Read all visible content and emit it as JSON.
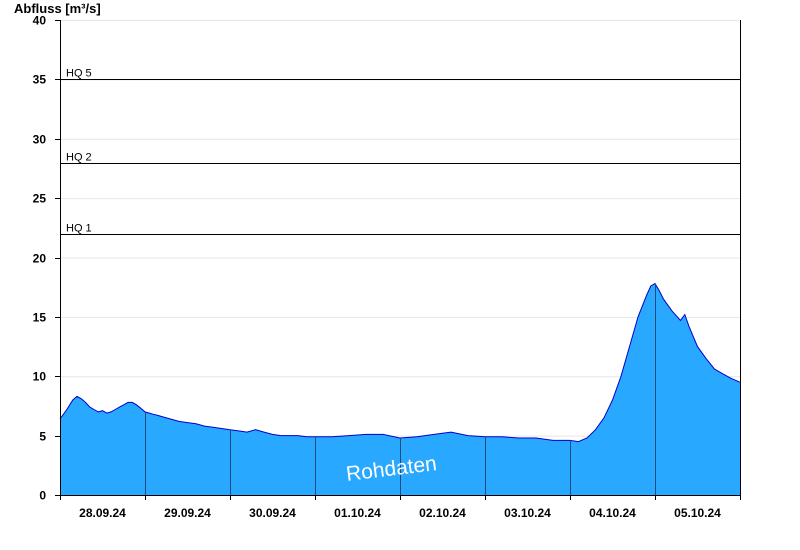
{
  "chart_data": {
    "type": "area",
    "ylabel": "Abfluss [m³/s]",
    "ylim": [
      0,
      40
    ],
    "yticks": [
      0,
      5,
      10,
      15,
      20,
      25,
      30,
      35,
      40
    ],
    "xlim": [
      0,
      8
    ],
    "grid": true,
    "x_tick_labels": [
      "28.09.24",
      "29.09.24",
      "30.09.24",
      "01.10.24",
      "02.10.24",
      "03.10.24",
      "04.10.24",
      "05.10.24"
    ],
    "day_boundaries": [
      1,
      2,
      3,
      4,
      5,
      6,
      7
    ],
    "reference_lines": [
      {
        "label": "HQ 5",
        "value": 35
      },
      {
        "label": "HQ 2",
        "value": 28
      },
      {
        "label": "HQ 1",
        "value": 22
      }
    ],
    "watermark": "Rohdaten",
    "colors": {
      "fill": "#29a8ff",
      "line": "#0000cc",
      "axis": "#000000",
      "grid": "#e6e6e6"
    },
    "series": [
      {
        "x_unit": "days since 28.09.24 00:00",
        "x": [
          0,
          0.08,
          0.15,
          0.2,
          0.25,
          0.3,
          0.35,
          0.4,
          0.45,
          0.5,
          0.55,
          0.6,
          0.65,
          0.7,
          0.75,
          0.8,
          0.85,
          0.9,
          0.95,
          1.0,
          1.05,
          1.1,
          1.15,
          1.2,
          1.3,
          1.4,
          1.5,
          1.6,
          1.7,
          1.8,
          1.9,
          2.0,
          2.1,
          2.2,
          2.3,
          2.4,
          2.5,
          2.6,
          2.7,
          2.8,
          2.9,
          3.0,
          3.2,
          3.4,
          3.6,
          3.8,
          4.0,
          4.2,
          4.4,
          4.6,
          4.8,
          5.0,
          5.2,
          5.4,
          5.6,
          5.8,
          6.0,
          6.1,
          6.2,
          6.3,
          6.4,
          6.5,
          6.6,
          6.7,
          6.8,
          6.9,
          6.95,
          7.0,
          7.05,
          7.1,
          7.2,
          7.3,
          7.35,
          7.4,
          7.5,
          7.6,
          7.7,
          7.8,
          7.9,
          8.0
        ],
        "values": [
          6.4,
          7.2,
          8.0,
          8.3,
          8.1,
          7.8,
          7.4,
          7.2,
          7.0,
          7.1,
          6.9,
          7.0,
          7.2,
          7.4,
          7.6,
          7.8,
          7.8,
          7.6,
          7.3,
          7.0,
          6.9,
          6.8,
          6.7,
          6.6,
          6.4,
          6.2,
          6.1,
          6.0,
          5.8,
          5.7,
          5.6,
          5.5,
          5.4,
          5.3,
          5.5,
          5.3,
          5.1,
          5.0,
          5.0,
          5.0,
          4.9,
          4.9,
          4.9,
          5.0,
          5.1,
          5.1,
          4.8,
          4.9,
          5.1,
          5.3,
          5.0,
          4.9,
          4.9,
          4.8,
          4.8,
          4.6,
          4.6,
          4.5,
          4.8,
          5.5,
          6.5,
          8.0,
          10.0,
          12.5,
          15.0,
          16.8,
          17.6,
          17.8,
          17.2,
          16.5,
          15.5,
          14.7,
          15.2,
          14.2,
          12.5,
          11.5,
          10.6,
          10.2,
          9.8,
          9.5
        ]
      }
    ]
  }
}
